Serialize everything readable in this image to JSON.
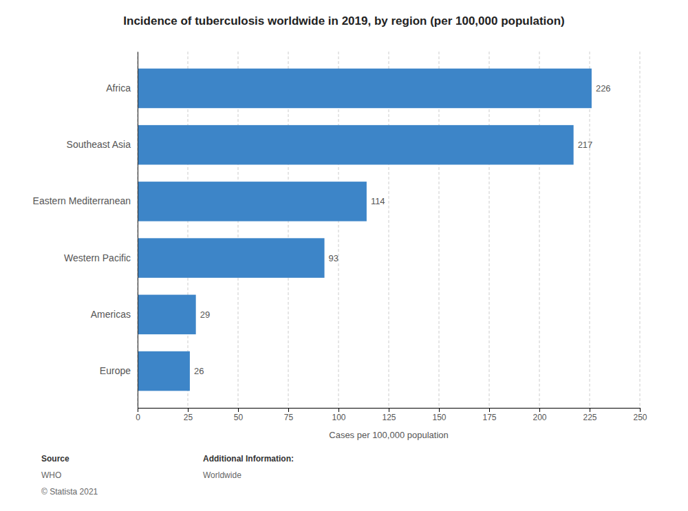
{
  "chart_data": {
    "type": "bar",
    "orientation": "horizontal",
    "title": "Incidence of tuberculosis worldwide in 2019, by region (per 100,000 population)",
    "categories": [
      "Africa",
      "Southeast Asia",
      "Eastern Mediterranean",
      "Western Pacific",
      "Americas",
      "Europe"
    ],
    "values": [
      226,
      217,
      114,
      93,
      29,
      26
    ],
    "color": "#3d85c8",
    "xlabel": "Cases per 100,000 population",
    "xlim": [
      0,
      250
    ],
    "xticks": [
      0,
      25,
      50,
      75,
      100,
      125,
      150,
      175,
      200,
      225,
      250
    ],
    "grid": true,
    "data_labels": true,
    "annotations": [
      "Source",
      "WHO",
      "© Statista 2021",
      "Additional Information:",
      "Worldwide"
    ]
  }
}
